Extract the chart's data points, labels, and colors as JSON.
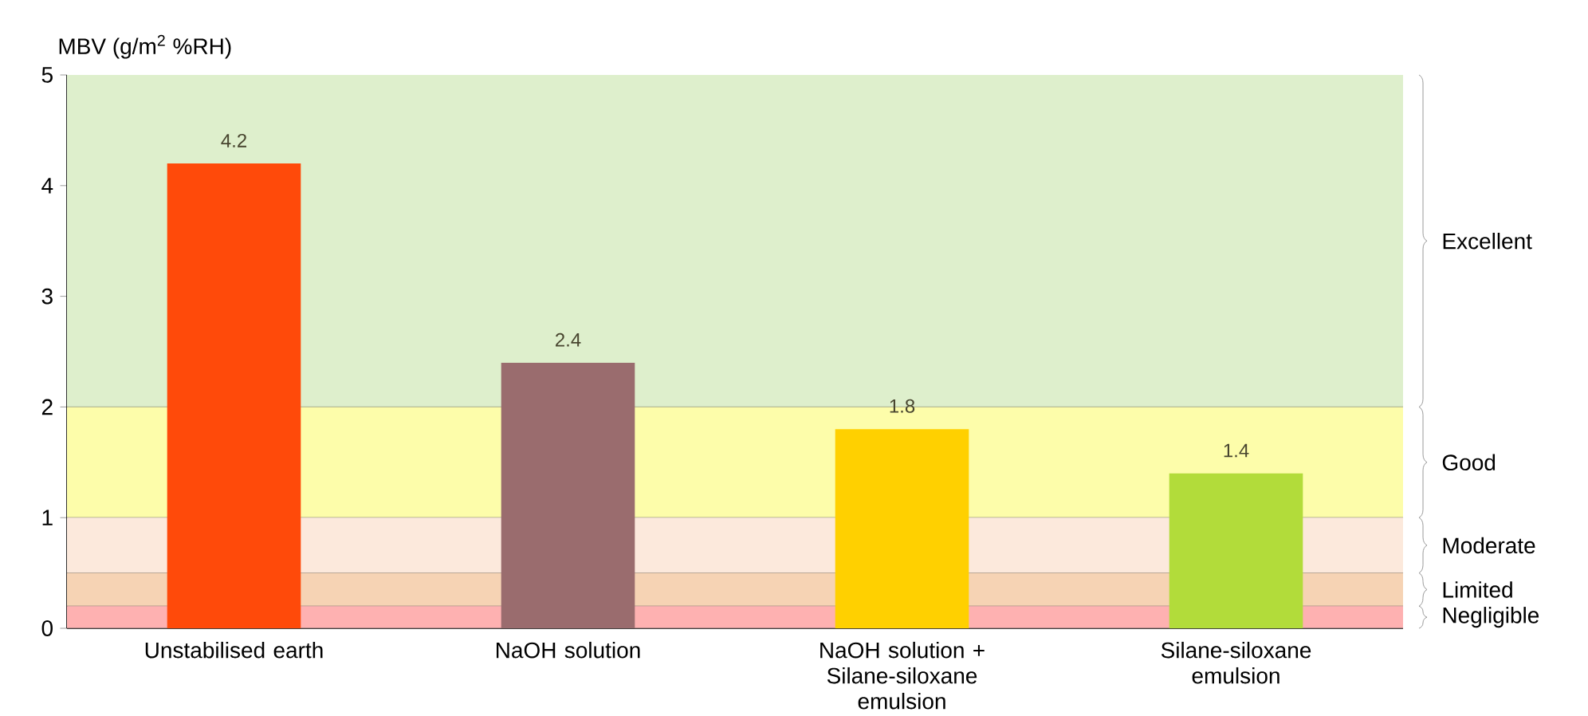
{
  "chart_data": {
    "type": "bar",
    "ylabel": "MBV (g/m$^{2}$ %RH)",
    "categories": [
      "Unstabilised earth",
      "NaOH solution",
      "NaOH solution + Silane-siloxane emulsion",
      "Silane-siloxane emulsion"
    ],
    "values": [
      4.2,
      2.4,
      1.8,
      1.4
    ],
    "colors": [
      "#ff4a0a",
      "#9a6c6e",
      "#ffd000",
      "#b2dc3a"
    ],
    "ylim": [
      0,
      5
    ],
    "yticks": [
      0,
      1,
      2,
      3,
      4,
      5
    ],
    "data_labels": true,
    "bands": [
      {
        "axis": "y",
        "from": 2,
        "to": 5,
        "label": "Excellent",
        "color": "#deefcc"
      },
      {
        "axis": "y",
        "from": 1,
        "to": 2,
        "label": "Good",
        "color": "#fdfdaa"
      },
      {
        "axis": "y",
        "from": 0.5,
        "to": 1,
        "label": "Moderate",
        "color": "#fce9dc"
      },
      {
        "axis": "y",
        "from": 0.2,
        "to": 0.5,
        "label": "Limited",
        "color": "#f6d3b4"
      },
      {
        "axis": "y",
        "from": 0,
        "to": 0.2,
        "label": "Negligible",
        "color": "#feb1b1"
      }
    ]
  }
}
